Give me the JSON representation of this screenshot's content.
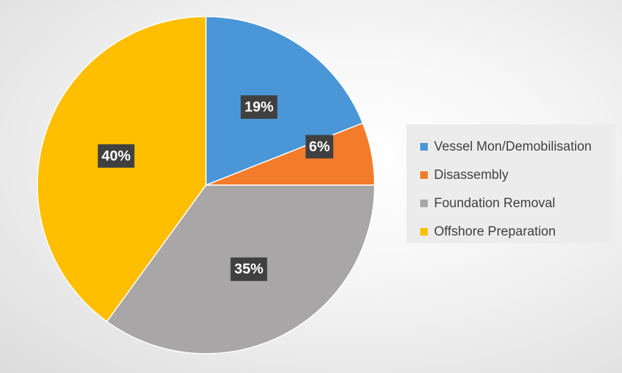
{
  "chart_data": {
    "type": "pie",
    "categories": [
      "Vessel Mon/Demobilisation",
      "Disassembly",
      "Foundation Removal",
      "Offshore Preparation"
    ],
    "values": [
      19,
      6,
      35,
      40
    ],
    "data_labels": [
      "19%",
      "6%",
      "35%",
      "40%"
    ],
    "colors": [
      "#4a96d6",
      "#f37c2a",
      "#a8a6a6",
      "#ffbf00"
    ],
    "start_angle_deg": 0,
    "direction": "clockwise",
    "legend_position": "right",
    "title": ""
  }
}
